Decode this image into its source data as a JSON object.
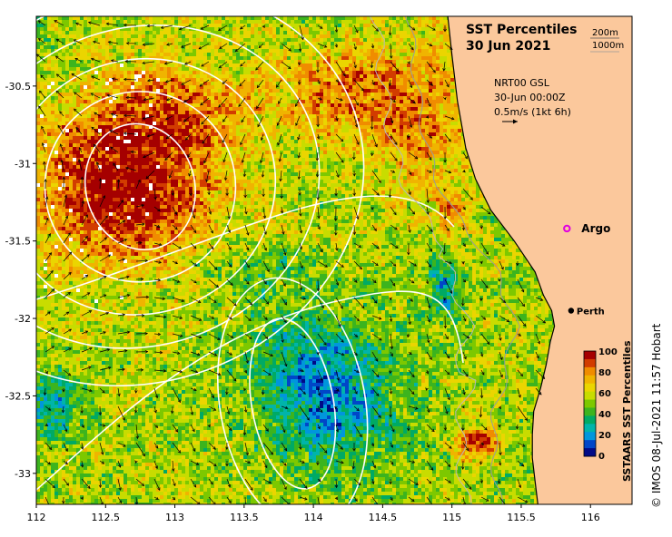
{
  "title": {
    "line1": "SST Percentiles",
    "line2": "30 Jun 2021"
  },
  "depth_contours": {
    "c1": "200m",
    "c2": "1000m"
  },
  "currents": {
    "product": "NRT00 GSL",
    "time": "30-Jun 00:00Z",
    "scale": "0.5m/s (1kt 6h)"
  },
  "places": {
    "argo": "Argo",
    "perth": "Perth"
  },
  "colorbar": {
    "title": "SSTAARS SST Percentiles",
    "ticks": [
      "100",
      "80",
      "60",
      "40",
      "20",
      "0"
    ],
    "colors": [
      "#a50000",
      "#d23c00",
      "#f08c00",
      "#f0b400",
      "#ebd500",
      "#c8dc00",
      "#7dc800",
      "#3cb41e",
      "#00aa64",
      "#00b4aa",
      "#0096dc",
      "#0046c8",
      "#000a87"
    ]
  },
  "copyright": "© IMOS 08-Jul-2021 11:57 Hobart",
  "axes": {
    "x_ticks": [
      "112",
      "112.5",
      "113",
      "113.5",
      "114",
      "114.5",
      "115",
      "115.5",
      "116"
    ],
    "y_ticks": [
      "-30.5",
      "-31",
      "-31.5",
      "-32",
      "-32.5",
      "-33"
    ]
  },
  "chart_data": {
    "type": "heatmap",
    "x_range": [
      112,
      116.3
    ],
    "y_range": [
      -33.2,
      -30.05
    ],
    "x_ticks": [
      112,
      112.5,
      113,
      113.5,
      114,
      114.5,
      115,
      115.5,
      116
    ],
    "y_ticks": [
      -30.5,
      -31,
      -31.5,
      -32,
      -32.5,
      -33
    ],
    "value_range": [
      0,
      100
    ],
    "land_color": "#fbc89c",
    "argo_float": {
      "lon": 115.83,
      "lat": -31.42
    },
    "perth": {
      "lon": 115.86,
      "lat": -31.95
    },
    "features": [
      {
        "kind": "warm-eddy",
        "lon": 112.7,
        "lat": -31.1,
        "percentile": 100
      },
      {
        "kind": "cool-region",
        "lon": 114.2,
        "lat": -32.5,
        "percentile": 25
      }
    ]
  }
}
